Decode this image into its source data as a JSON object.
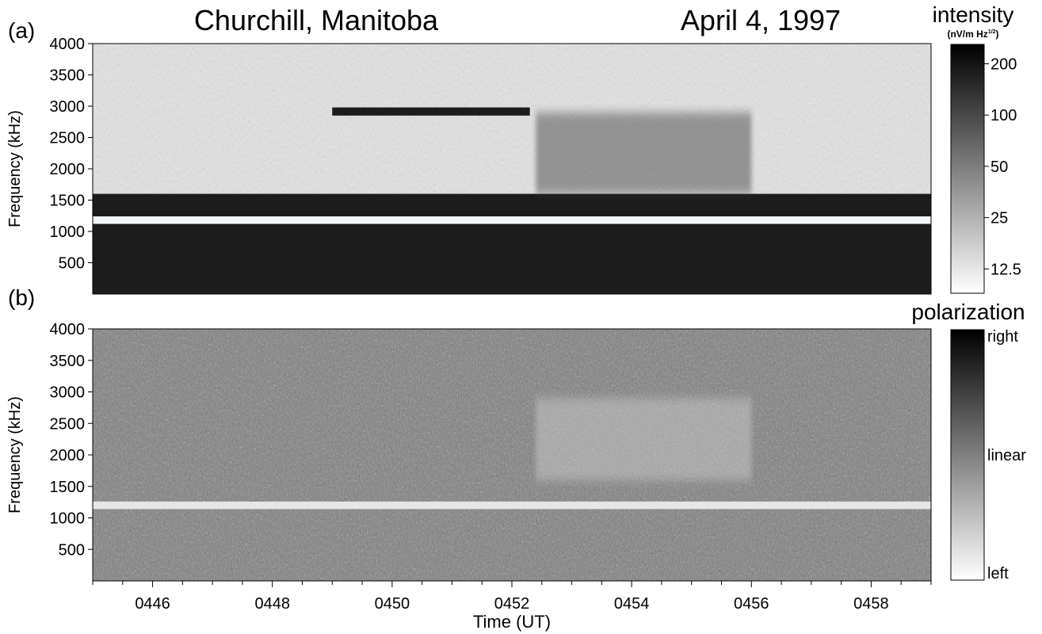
{
  "figure": {
    "location": "Churchill, Manitoba",
    "date": "April 4, 1997"
  },
  "chart_data": [
    {
      "type": "heatmap",
      "panel_label": "(a)",
      "ylabel": "Frequency (kHz)",
      "y_ticks": [
        500,
        1000,
        1500,
        2000,
        2500,
        3000,
        3500,
        4000
      ],
      "ylim": [
        0,
        4000
      ],
      "colorbar": {
        "title": "intensity",
        "units": "(nV/m Hz",
        "units_sup": "1/2",
        "units_close": ")",
        "ticks": [
          "200",
          "100",
          "50",
          "25",
          "12.5"
        ],
        "tick_values": [
          200,
          100,
          50,
          25,
          12.5
        ],
        "range": [
          9,
          260
        ],
        "scale": "log",
        "colormap": "white-to-black"
      },
      "features": [
        {
          "label": "band",
          "f_low": 0,
          "f_high": 1600,
          "time_start": "0445",
          "time_end": "0459",
          "level": "high"
        },
        {
          "label": "bright band",
          "f_low": 1120,
          "f_high": 1240,
          "time_start": "0445",
          "time_end": "0459",
          "level": "low"
        },
        {
          "label": "emission",
          "f_low": 1600,
          "f_high": 2900,
          "time_start": "0452.4",
          "time_end": "0456",
          "level": "moderate"
        },
        {
          "label": "trace",
          "f_low": 2850,
          "f_high": 2980,
          "time_start": "0449",
          "time_end": "0452.3",
          "level": "high"
        }
      ]
    },
    {
      "type": "heatmap",
      "panel_label": "(b)",
      "ylabel": "Frequency (kHz)",
      "xlabel": "Time (UT)",
      "y_ticks": [
        500,
        1000,
        1500,
        2000,
        2500,
        3000,
        3500,
        4000
      ],
      "ylim": [
        0,
        4000
      ],
      "x_ticks": [
        "0446",
        "0448",
        "0450",
        "0452",
        "0454",
        "0456",
        "0458"
      ],
      "x_tick_minutes": [
        46,
        48,
        50,
        52,
        54,
        56,
        58
      ],
      "xlim_minutes": [
        45,
        59
      ],
      "colorbar": {
        "title": "polarization",
        "ticks": [
          "right",
          "linear",
          "left"
        ],
        "colormap": "black(right)-gray(linear)-white(left)"
      },
      "features": [
        {
          "label": "left band",
          "f_low": 1140,
          "f_high": 1260,
          "time_start": "0445",
          "time_end": "0459",
          "polarization": "left"
        },
        {
          "label": "emission",
          "f_low": 1600,
          "f_high": 2900,
          "time_start": "0452.4",
          "time_end": "0456",
          "polarization": "left-linear"
        }
      ]
    }
  ],
  "colors": {
    "axis": "#000000",
    "background": "#ffffff"
  }
}
